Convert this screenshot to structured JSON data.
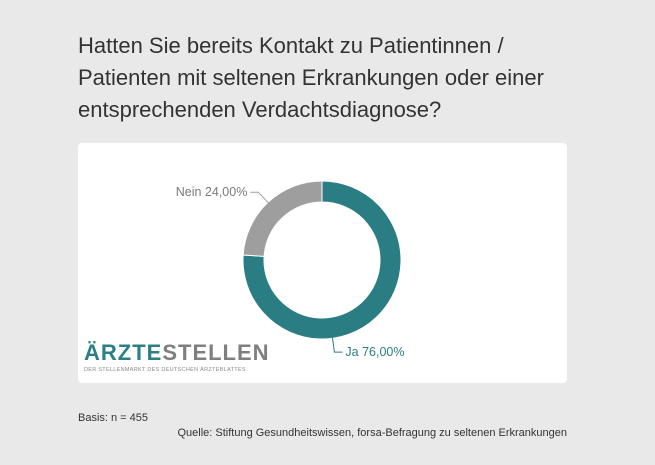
{
  "title": "Hatten Sie bereits Kontakt zu Patientinnen / Patienten mit seltenen Erkrankungen oder einer entsprechenden Verdachtsdiagnose?",
  "logo": {
    "part1": "ÄRZTE",
    "part2": "STELLEN",
    "tagline": "DER STELLENMARKT DES DEUTSCHEN ÄRZTEBLATTES"
  },
  "basis": "Basis: n = 455",
  "source": "Quelle: Stiftung Gesundheitswissen, forsa-Befragung zu seltenen Erkrankungen",
  "colors": {
    "ja": "#2b7d84",
    "nein": "#9e9e9e",
    "background": "#e8e9e8"
  },
  "chart_data": {
    "type": "pie",
    "variant": "donut",
    "title": "Hatten Sie bereits Kontakt zu Patientinnen / Patienten mit seltenen Erkrankungen oder einer entsprechenden Verdachtsdiagnose?",
    "categories": [
      "Ja",
      "Nein"
    ],
    "values": [
      76.0,
      24.0
    ],
    "unit": "%",
    "data_labels": [
      "Ja 76,00%",
      "Nein 24,00%"
    ]
  }
}
